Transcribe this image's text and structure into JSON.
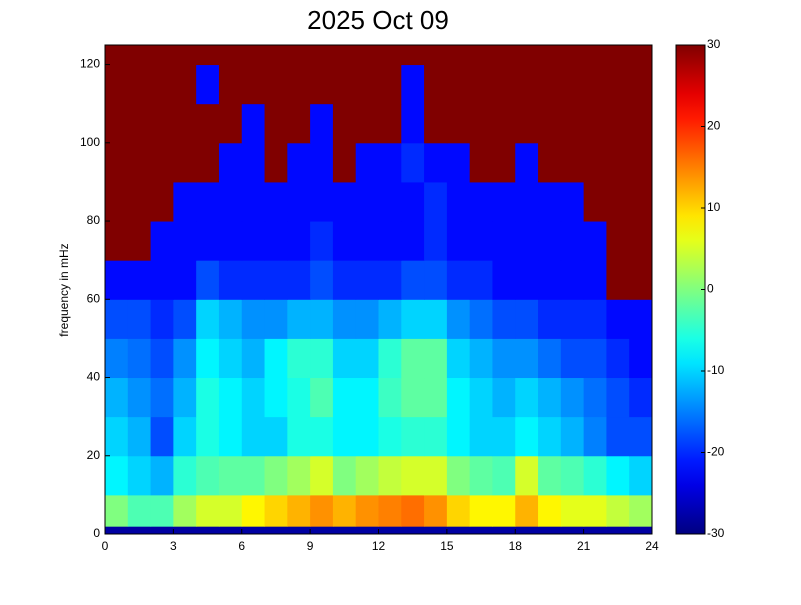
{
  "chart_data": {
    "type": "heatmap",
    "title": "2025 Oct 09",
    "ylabel": "frequency in mHz",
    "xlim": [
      0,
      24
    ],
    "xticks": [
      0,
      3,
      6,
      9,
      12,
      15,
      18,
      21,
      24
    ],
    "ylim": [
      0,
      125
    ],
    "yticks": [
      0,
      20,
      40,
      60,
      80,
      100,
      120
    ],
    "clim": [
      -30,
      30
    ],
    "cticks": [
      -30,
      -20,
      -10,
      0,
      10,
      20,
      30
    ],
    "colormap": "jet",
    "xbins": [
      0,
      1,
      2,
      3,
      4,
      5,
      6,
      7,
      8,
      9,
      10,
      11,
      12,
      13,
      14,
      15,
      16,
      17,
      18,
      19,
      20,
      21,
      22,
      23,
      24
    ],
    "ybins": [
      0,
      2,
      10,
      20,
      30,
      40,
      50,
      60,
      70,
      80,
      90,
      100,
      110,
      120,
      125
    ],
    "z": [
      [
        -28,
        -28,
        -28,
        -28,
        -28,
        -28,
        -28,
        -28,
        -28,
        -28,
        -28,
        -28,
        -28,
        -28,
        -28,
        -28,
        -28,
        -28,
        -28,
        -28,
        -28,
        -28,
        -28,
        -28
      ],
      [
        0,
        -3,
        -3,
        2,
        5,
        5,
        8,
        10,
        12,
        14,
        12,
        14,
        15,
        16,
        14,
        10,
        8,
        8,
        12,
        8,
        6,
        6,
        4,
        2
      ],
      [
        -8,
        -10,
        -12,
        -5,
        -3,
        -2,
        -2,
        0,
        2,
        5,
        0,
        2,
        4,
        5,
        5,
        0,
        -2,
        -3,
        5,
        -2,
        -3,
        -5,
        -8,
        -10
      ],
      [
        -10,
        -12,
        -18,
        -10,
        -6,
        -8,
        -10,
        -10,
        -6,
        -6,
        -8,
        -8,
        -6,
        -5,
        -5,
        -8,
        -10,
        -10,
        -8,
        -10,
        -12,
        -15,
        -18,
        -18
      ],
      [
        -12,
        -14,
        -16,
        -12,
        -6,
        -8,
        -10,
        -8,
        -6,
        -3,
        -8,
        -8,
        -4,
        -2,
        -2,
        -8,
        -10,
        -12,
        -10,
        -12,
        -14,
        -16,
        -18,
        -20
      ],
      [
        -15,
        -16,
        -18,
        -14,
        -8,
        -10,
        -12,
        -8,
        -5,
        -5,
        -10,
        -10,
        -5,
        -2,
        -2,
        -10,
        -12,
        -14,
        -14,
        -16,
        -18,
        -18,
        -20,
        -22
      ],
      [
        -18,
        -18,
        -20,
        -18,
        -10,
        -12,
        -14,
        -14,
        -12,
        -12,
        -14,
        -14,
        -12,
        -10,
        -10,
        -14,
        -16,
        -18,
        -18,
        -20,
        -20,
        -20,
        -22,
        -22
      ],
      [
        -22,
        -22,
        -22,
        -22,
        -18,
        -20,
        -20,
        -20,
        -20,
        -18,
        -20,
        -20,
        -20,
        -18,
        -18,
        -20,
        -20,
        -22,
        -22,
        -22,
        -22,
        -22,
        30,
        30
      ],
      [
        30,
        30,
        -22,
        -22,
        -22,
        -22,
        -22,
        -22,
        -22,
        -20,
        -22,
        -22,
        -22,
        -22,
        -20,
        -22,
        -22,
        -22,
        -22,
        -22,
        -22,
        -22,
        30,
        30
      ],
      [
        30,
        30,
        30,
        -22,
        -22,
        -22,
        -22,
        -22,
        -22,
        -22,
        -22,
        -22,
        -22,
        -22,
        -20,
        -22,
        -22,
        -22,
        -22,
        -22,
        -22,
        30,
        30,
        30
      ],
      [
        30,
        30,
        30,
        30,
        30,
        -22,
        -22,
        30,
        -22,
        -22,
        30,
        -22,
        -22,
        -20,
        -22,
        -22,
        30,
        30,
        -22,
        30,
        30,
        30,
        30,
        30
      ],
      [
        30,
        30,
        30,
        30,
        30,
        30,
        -22,
        30,
        30,
        -22,
        30,
        30,
        30,
        -22,
        30,
        30,
        30,
        30,
        30,
        30,
        30,
        30,
        30,
        30
      ],
      [
        30,
        30,
        30,
        30,
        -22,
        30,
        30,
        30,
        30,
        30,
        30,
        30,
        30,
        -22,
        30,
        30,
        30,
        30,
        30,
        30,
        30,
        30,
        30,
        30
      ],
      [
        30,
        30,
        30,
        30,
        30,
        30,
        30,
        30,
        30,
        30,
        30,
        30,
        30,
        30,
        30,
        30,
        30,
        30,
        30,
        30,
        30,
        30,
        30,
        30
      ]
    ]
  }
}
